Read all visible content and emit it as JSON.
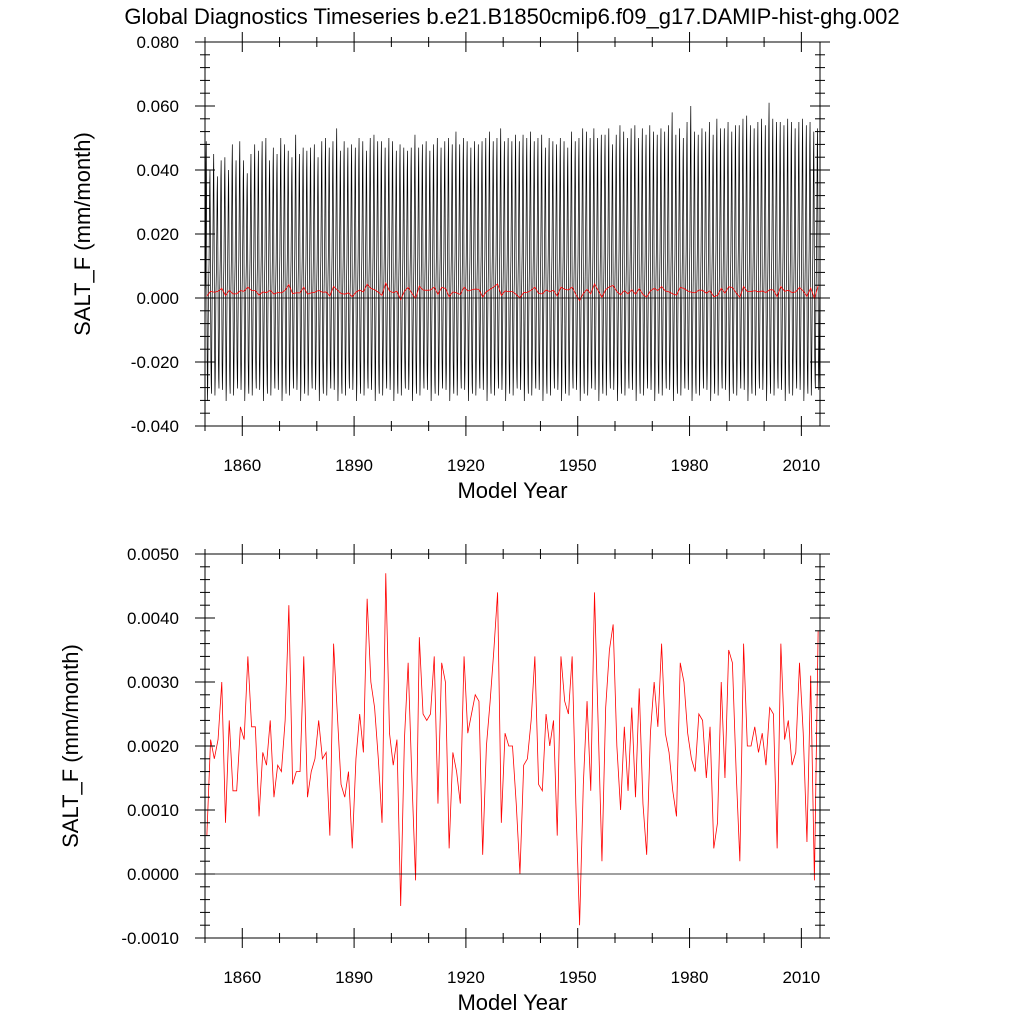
{
  "title": "Global Diagnostics Timeseries b.e21.B1850cmip6.f09_g17.DAMIP-hist-ghg.002",
  "colors": {
    "monthly": "#000000",
    "annual": "#ff0000",
    "zero_line": "#000000",
    "frame": "#000000"
  },
  "chart_data": [
    {
      "type": "line",
      "xlabel": "Model Year",
      "ylabel": "SALT_F (mm/month)",
      "xlim": [
        1850,
        2015
      ],
      "ylim": [
        -0.04,
        0.08
      ],
      "x_ticks": [
        1860,
        1890,
        1920,
        1950,
        1980,
        2010
      ],
      "x_tick_labels": [
        "1860",
        "1890",
        "1920",
        "1950",
        "1980",
        "2010"
      ],
      "y_ticks": [
        -0.04,
        -0.02,
        0.0,
        0.02,
        0.04,
        0.06,
        0.08
      ],
      "y_tick_labels": [
        "-0.040",
        "-0.020",
        "0.000",
        "0.020",
        "0.040",
        "0.060",
        "0.080"
      ],
      "reference_line": 0.0,
      "series": [
        {
          "kind": "monthly",
          "color": "#000000",
          "x_start": 1850.0,
          "x_step": 0.0833333,
          "month_pattern": [
            0.006,
            0.012,
            0.024,
            0.038,
            0.044,
            0.028,
            0.004,
            -0.018,
            -0.028,
            -0.026,
            -0.012,
            0.0
          ],
          "annual_peak_maxima": [
            0.049,
            0.04,
            0.045,
            0.038,
            0.043,
            0.044,
            0.04,
            0.048,
            0.043,
            0.049,
            0.043,
            0.039,
            0.045,
            0.048,
            0.046,
            0.049,
            0.05,
            0.043,
            0.047,
            0.045,
            0.05,
            0.048,
            0.046,
            0.044,
            0.051,
            0.045,
            0.047,
            0.046,
            0.047,
            0.048,
            0.044,
            0.049,
            0.05,
            0.047,
            0.049,
            0.053,
            0.046,
            0.049,
            0.047,
            0.048,
            0.047,
            0.05,
            0.049,
            0.046,
            0.05,
            0.051,
            0.049,
            0.049,
            0.047,
            0.05,
            0.049,
            0.046,
            0.048,
            0.047,
            0.046,
            0.047,
            0.051,
            0.047,
            0.048,
            0.049,
            0.046,
            0.048,
            0.05,
            0.047,
            0.049,
            0.05,
            0.048,
            0.052,
            0.048,
            0.05,
            0.049,
            0.047,
            0.049,
            0.048,
            0.049,
            0.05,
            0.052,
            0.049,
            0.05,
            0.053,
            0.049,
            0.05,
            0.049,
            0.051,
            0.049,
            0.051,
            0.05,
            0.052,
            0.049,
            0.05,
            0.051,
            0.047,
            0.05,
            0.049,
            0.048,
            0.05,
            0.049,
            0.047,
            0.052,
            0.049,
            0.05,
            0.053,
            0.052,
            0.05,
            0.053,
            0.05,
            0.051,
            0.051,
            0.053,
            0.048,
            0.051,
            0.054,
            0.052,
            0.05,
            0.053,
            0.054,
            0.05,
            0.053,
            0.051,
            0.054,
            0.052,
            0.051,
            0.053,
            0.052,
            0.054,
            0.058,
            0.051,
            0.053,
            0.05,
            0.055,
            0.06,
            0.052,
            0.051,
            0.053,
            0.052,
            0.055,
            0.051,
            0.056,
            0.053,
            0.053,
            0.055,
            0.052,
            0.054,
            0.054,
            0.056,
            0.057,
            0.054,
            0.053,
            0.055,
            0.056,
            0.054,
            0.061,
            0.056,
            0.055,
            0.055,
            0.054,
            0.056,
            0.055,
            0.053,
            0.055,
            0.056,
            0.054,
            0.055,
            0.052,
            0.053
          ]
        },
        {
          "kind": "annual",
          "color": "#ff0000",
          "x_start": 1850.5,
          "x_step": 1.0,
          "values": [
            0.0006,
            0.0021,
            0.0018,
            0.0021,
            0.003,
            0.0008,
            0.0024,
            0.0013,
            0.0013,
            0.0023,
            0.0021,
            0.0034,
            0.0023,
            0.0023,
            0.0009,
            0.0019,
            0.0017,
            0.0024,
            0.0012,
            0.0017,
            0.0016,
            0.0024,
            0.0042,
            0.0014,
            0.0016,
            0.0016,
            0.0034,
            0.0012,
            0.0016,
            0.0018,
            0.0024,
            0.0018,
            0.0019,
            0.0006,
            0.0036,
            0.0025,
            0.0014,
            0.0012,
            0.0016,
            0.0004,
            0.0018,
            0.0025,
            0.0019,
            0.0043,
            0.003,
            0.0026,
            0.0018,
            0.0008,
            0.0047,
            0.0022,
            0.0017,
            0.0021,
            -0.0005,
            0.0021,
            0.0033,
            0.0015,
            -0.0001,
            0.0037,
            0.0025,
            0.0024,
            0.0025,
            0.0034,
            0.0011,
            0.0033,
            0.003,
            0.0004,
            0.0019,
            0.0016,
            0.0011,
            0.0034,
            0.0022,
            0.0025,
            0.0028,
            0.0027,
            0.0003,
            0.002,
            0.0027,
            0.0035,
            0.0044,
            0.0008,
            0.0022,
            0.002,
            0.002,
            0.0011,
            0.0,
            0.0017,
            0.0018,
            0.0024,
            0.0034,
            0.0014,
            0.0013,
            0.0025,
            0.002,
            0.0024,
            0.0006,
            0.0034,
            0.0027,
            0.0025,
            0.0034,
            0.0011,
            -0.0008,
            0.0014,
            0.0027,
            0.0013,
            0.0044,
            0.0023,
            0.0002,
            0.0026,
            0.0035,
            0.0039,
            0.002,
            0.001,
            0.0023,
            0.0013,
            0.0026,
            0.0012,
            0.0029,
            0.0011,
            0.0003,
            0.0022,
            0.003,
            0.0023,
            0.0036,
            0.0022,
            0.0019,
            0.0013,
            0.0009,
            0.0033,
            0.003,
            0.0022,
            0.0018,
            0.0016,
            0.0025,
            0.0024,
            0.0015,
            0.0023,
            0.0004,
            0.0008,
            0.003,
            0.0015,
            0.0035,
            0.0033,
            0.0016,
            0.0002,
            0.0036,
            0.002,
            0.002,
            0.0023,
            0.0019,
            0.0022,
            0.0017,
            0.0026,
            0.0025,
            0.0004,
            0.0036,
            0.0021,
            0.0024,
            0.0017,
            0.0019,
            0.0033,
            0.0022,
            0.0005,
            0.0031,
            -0.0001,
            0.0038
          ]
        }
      ]
    },
    {
      "type": "line",
      "xlabel": "Model Year",
      "ylabel": "SALT_F (mm/month)",
      "xlim": [
        1850,
        2015
      ],
      "ylim": [
        -0.001,
        0.005
      ],
      "x_ticks": [
        1860,
        1890,
        1920,
        1950,
        1980,
        2010
      ],
      "x_tick_labels": [
        "1860",
        "1890",
        "1920",
        "1950",
        "1980",
        "2010"
      ],
      "y_ticks": [
        -0.001,
        0.0,
        0.001,
        0.002,
        0.003,
        0.004,
        0.005
      ],
      "y_tick_labels": [
        "-0.0010",
        "0.0000",
        "0.0010",
        "0.0020",
        "0.0030",
        "0.0040",
        "0.0050"
      ],
      "reference_line": 0.0,
      "series": [
        {
          "kind": "annual",
          "color": "#ff0000",
          "x_start": 1850.5,
          "x_step": 1.0,
          "values_ref": "chart_data.0.series.1.values"
        }
      ]
    }
  ]
}
